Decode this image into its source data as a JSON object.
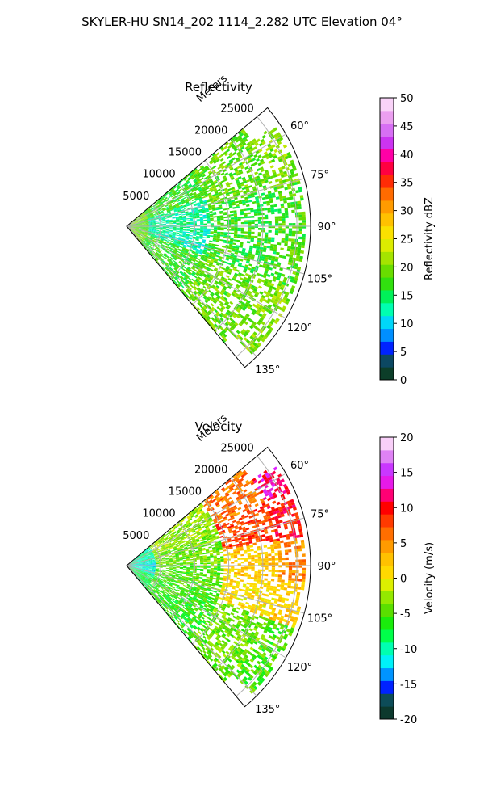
{
  "suptitle": "SKYLER-HU  SN14_202  1114_2.282 UTC Elevation 04°",
  "colors": {
    "grid": "#b0b0b0",
    "frame": "#000000",
    "background": "#ffffff"
  },
  "chart_data": [
    {
      "type": "heatmap",
      "projection": "polar-sector",
      "title": "Reflectivity",
      "range_label": "Meters",
      "range_ticks": [
        5000,
        10000,
        15000,
        20000,
        25000
      ],
      "range_limit": [
        0,
        27000
      ],
      "range_tick_labels": [
        "5000",
        "10000",
        "15000",
        "20000",
        "25000"
      ],
      "azimuth_range_deg": [
        50,
        140
      ],
      "azimuth_ticks_deg": [
        60,
        75,
        90,
        105,
        120,
        135
      ],
      "azimuth_tick_labels": [
        "60°",
        "75°",
        "90°",
        "105°",
        "120°",
        "135°"
      ],
      "grid": true,
      "colorbar": {
        "label": "Reflectivity dBZ",
        "min": 0,
        "max": 50,
        "ticks": [
          0,
          5,
          10,
          15,
          20,
          25,
          30,
          35,
          40,
          45,
          50
        ],
        "tick_labels": [
          "0",
          "5",
          "10",
          "15",
          "20",
          "25",
          "30",
          "35",
          "40",
          "45",
          "50"
        ],
        "colormap": [
          [
            0,
            "#0a1a5e"
          ],
          [
            1,
            "#0c3c28"
          ],
          [
            3,
            "#0f5a3a"
          ],
          [
            5,
            "#0000ff"
          ],
          [
            7.5,
            "#0080ff"
          ],
          [
            10,
            "#00d2ff"
          ],
          [
            12.5,
            "#00ffb0"
          ],
          [
            15,
            "#00f050"
          ],
          [
            17.5,
            "#3cdc00"
          ],
          [
            20,
            "#7ade00"
          ],
          [
            22.5,
            "#bde800"
          ],
          [
            25,
            "#f6f000"
          ],
          [
            27.5,
            "#ffd000"
          ],
          [
            30,
            "#ffa800"
          ],
          [
            32.5,
            "#ff7800"
          ],
          [
            35,
            "#ff3000"
          ],
          [
            37.5,
            "#ff0040"
          ],
          [
            40,
            "#ff00b0"
          ],
          [
            42.5,
            "#c040ff"
          ],
          [
            45,
            "#e080f0"
          ],
          [
            47.5,
            "#f2b0f0"
          ],
          [
            50,
            "#fff0ff"
          ]
        ]
      },
      "field": [
        {
          "az": [
            50,
            70
          ],
          "range": [
            0,
            3000
          ],
          "value": 20
        },
        {
          "az": [
            70,
            110
          ],
          "range": [
            0,
            3000
          ],
          "value": 18
        },
        {
          "az": [
            110,
            140
          ],
          "range": [
            0,
            3000
          ],
          "value": 20
        },
        {
          "az": [
            50,
            70
          ],
          "range": [
            3000,
            12000
          ],
          "value": 17
        },
        {
          "az": [
            70,
            110
          ],
          "range": [
            3000,
            12000
          ],
          "value": 13
        },
        {
          "az": [
            110,
            140
          ],
          "range": [
            3000,
            12000
          ],
          "value": 17
        },
        {
          "az": [
            50,
            75
          ],
          "range": [
            12000,
            22000
          ],
          "value": 19
        },
        {
          "az": [
            75,
            110
          ],
          "range": [
            12000,
            22000
          ],
          "value": 17
        },
        {
          "az": [
            110,
            140
          ],
          "range": [
            12000,
            22000
          ],
          "value": 19
        },
        {
          "az": [
            55,
            75
          ],
          "range": [
            22000,
            26000
          ],
          "value": 20
        },
        {
          "az": [
            75,
            110
          ],
          "range": [
            22000,
            26000
          ],
          "value": 18
        },
        {
          "az": [
            110,
            135
          ],
          "range": [
            22000,
            26000
          ],
          "value": 20
        }
      ]
    },
    {
      "type": "heatmap",
      "projection": "polar-sector",
      "title": "Velocity",
      "range_label": "Meters",
      "range_ticks": [
        5000,
        10000,
        15000,
        20000,
        25000
      ],
      "range_limit": [
        0,
        27000
      ],
      "range_tick_labels": [
        "5000",
        "10000",
        "15000",
        "20000",
        "25000"
      ],
      "azimuth_range_deg": [
        50,
        140
      ],
      "azimuth_ticks_deg": [
        60,
        75,
        90,
        105,
        120,
        135
      ],
      "azimuth_tick_labels": [
        "60°",
        "75°",
        "90°",
        "105°",
        "120°",
        "135°"
      ],
      "grid": true,
      "colorbar": {
        "label": "Velocity (m/s)",
        "min": -20,
        "max": 20,
        "ticks": [
          -20,
          -15,
          -10,
          -5,
          0,
          5,
          10,
          15,
          20
        ],
        "tick_labels": [
          "-20",
          "-15",
          "-10",
          "-5",
          "0",
          "5",
          "10",
          "15",
          "20"
        ],
        "colormap": [
          [
            -20,
            "#0a1a5e"
          ],
          [
            -19,
            "#0c3c28"
          ],
          [
            -17.5,
            "#0f5a3a"
          ],
          [
            -16,
            "#0000ff"
          ],
          [
            -14,
            "#0080ff"
          ],
          [
            -12,
            "#00f0ff"
          ],
          [
            -10,
            "#00ffb0"
          ],
          [
            -8,
            "#00ff40"
          ],
          [
            -6,
            "#20e800"
          ],
          [
            -4,
            "#70dc00"
          ],
          [
            -2,
            "#a8f000"
          ],
          [
            -1,
            "#d8f000"
          ],
          [
            0,
            "#ffe000"
          ],
          [
            2,
            "#ffd000"
          ],
          [
            4,
            "#ffa800"
          ],
          [
            6,
            "#ff7800"
          ],
          [
            8,
            "#ff4000"
          ],
          [
            10,
            "#ff0000"
          ],
          [
            12,
            "#ff0080"
          ],
          [
            14,
            "#e020ff"
          ],
          [
            16,
            "#c040ff"
          ],
          [
            18,
            "#f0a8f0"
          ],
          [
            20,
            "#fff0ff"
          ]
        ]
      },
      "field": [
        {
          "az": [
            50,
            80
          ],
          "range": [
            0,
            4000
          ],
          "value": -10
        },
        {
          "az": [
            80,
            110
          ],
          "range": [
            0,
            4000
          ],
          "value": -11
        },
        {
          "az": [
            110,
            140
          ],
          "range": [
            0,
            4000
          ],
          "value": -8
        },
        {
          "az": [
            50,
            70
          ],
          "range": [
            4000,
            14000
          ],
          "value": -3
        },
        {
          "az": [
            70,
            90
          ],
          "range": [
            4000,
            14000
          ],
          "value": -4
        },
        {
          "az": [
            90,
            110
          ],
          "range": [
            4000,
            14000
          ],
          "value": -5
        },
        {
          "az": [
            110,
            140
          ],
          "range": [
            4000,
            14000
          ],
          "value": -6
        },
        {
          "az": [
            50,
            65
          ],
          "range": [
            14000,
            22000
          ],
          "value": 6
        },
        {
          "az": [
            65,
            80
          ],
          "range": [
            14000,
            22000
          ],
          "value": 8
        },
        {
          "az": [
            80,
            95
          ],
          "range": [
            14000,
            22000
          ],
          "value": 2
        },
        {
          "az": [
            95,
            110
          ],
          "range": [
            14000,
            22000
          ],
          "value": 1
        },
        {
          "az": [
            110,
            140
          ],
          "range": [
            14000,
            22000
          ],
          "value": -4
        },
        {
          "az": [
            55,
            65
          ],
          "range": [
            22000,
            26000
          ],
          "value": 12
        },
        {
          "az": [
            65,
            80
          ],
          "range": [
            22000,
            26000
          ],
          "value": 10
        },
        {
          "az": [
            80,
            95
          ],
          "range": [
            22000,
            26000
          ],
          "value": 5
        },
        {
          "az": [
            95,
            110
          ],
          "range": [
            22000,
            26000
          ],
          "value": 2
        },
        {
          "az": [
            110,
            135
          ],
          "range": [
            22000,
            26000
          ],
          "value": -5
        }
      ]
    }
  ]
}
